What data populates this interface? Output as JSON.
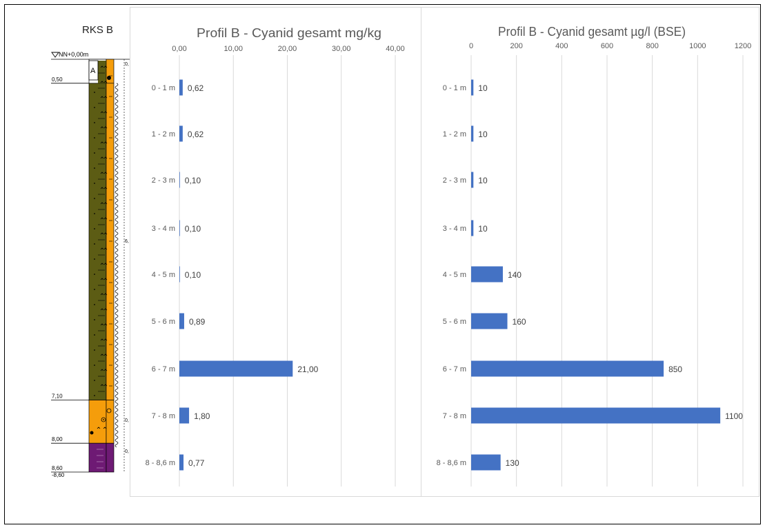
{
  "borehole": {
    "title": "RKS B",
    "datum": "NN+0,00m",
    "unit_label": "A",
    "depth_labels": [
      "0,50",
      "7,10",
      "8,00",
      "8,60",
      "-8,60"
    ],
    "side_labels": [
      "0,",
      "6,",
      "0,",
      "0,"
    ],
    "layers": [
      {
        "top": 0.0,
        "bottom": 0.5,
        "color": "#ffffff"
      },
      {
        "top": 0.5,
        "bottom": 7.1,
        "color": "#5c5c14"
      },
      {
        "top": 7.1,
        "bottom": 8.0,
        "color": "#f59d0b"
      },
      {
        "top": 8.0,
        "bottom": 8.6,
        "color": "#6e1a74"
      }
    ]
  },
  "chart_data": [
    {
      "type": "bar",
      "orientation": "horizontal",
      "title": "Profil B - Cyanid gesamt mg/kg",
      "categories": [
        "0 - 1 m",
        "1 - 2 m",
        "2 - 3 m",
        "3 - 4 m",
        "4 - 5 m",
        "5 - 6 m",
        "6 - 7 m",
        "7 - 8 m",
        "8 - 8,6 m"
      ],
      "values": [
        0.62,
        0.62,
        0.1,
        0.1,
        0.1,
        0.89,
        21.0,
        1.8,
        0.77
      ],
      "value_labels": [
        "0,62",
        "0,62",
        "0,10",
        "0,10",
        "0,10",
        "0,89",
        "21,00",
        "1,80",
        "0,77"
      ],
      "xlim": [
        0,
        40
      ],
      "xticks": [
        0,
        10,
        20,
        30,
        40
      ],
      "tick_labels": [
        "0,00",
        "10,00",
        "20,00",
        "30,00",
        "40,00"
      ],
      "axis_position": "top",
      "grid": true,
      "bar_color": "#4472c4"
    },
    {
      "type": "bar",
      "orientation": "horizontal",
      "title": "Profil B - Cyanid gesamt µg/l (BSE)",
      "categories": [
        "0 - 1 m",
        "1 - 2 m",
        "2 - 3 m",
        "3 - 4 m",
        "4 - 5 m",
        "5 - 6 m",
        "6 - 7 m",
        "7 - 8 m",
        "8 - 8,6 m"
      ],
      "values": [
        10,
        10,
        10,
        10,
        140,
        160,
        850,
        1100,
        130
      ],
      "value_labels": [
        "10",
        "10",
        "10",
        "10",
        "140",
        "160",
        "850",
        "1100",
        "130"
      ],
      "xlim": [
        0,
        1200
      ],
      "xticks": [
        0,
        200,
        400,
        600,
        800,
        1000,
        1200
      ],
      "tick_labels": [
        "0",
        "200",
        "400",
        "600",
        "800",
        "1000",
        "1200"
      ],
      "axis_position": "top",
      "grid": true,
      "bar_color": "#4472c4"
    }
  ]
}
